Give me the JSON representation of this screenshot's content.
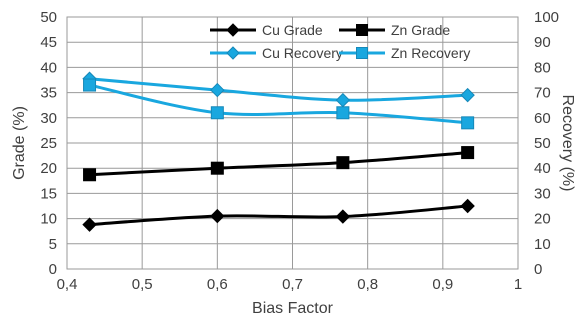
{
  "chart_data": {
    "type": "line",
    "title": "",
    "xlabel": "Bias Factor",
    "ylabel_left": "Grade (%)",
    "ylabel_right": "Recovery (%)",
    "xlim": [
      0.4,
      1.0
    ],
    "ylim_left": [
      0,
      50
    ],
    "ylim_right": [
      0,
      100
    ],
    "x_ticks": [
      "0,4",
      "0,5",
      "0,6",
      "0,7",
      "0,8",
      "0,9",
      "1"
    ],
    "y_left_ticks": [
      "0",
      "5",
      "10",
      "15",
      "20",
      "25",
      "30",
      "35",
      "40",
      "45",
      "50"
    ],
    "y_right_ticks": [
      "0",
      "10",
      "20",
      "30",
      "40",
      "50",
      "60",
      "70",
      "80",
      "90",
      "100"
    ],
    "grid": true,
    "legend_position": "top-right",
    "x": [
      0.43,
      0.6,
      0.767,
      0.933
    ],
    "series": [
      {
        "name": "Cu Grade",
        "axis": "left",
        "color": "#000000",
        "marker": "diamond",
        "values": [
          8.8,
          10.5,
          10.4,
          12.5
        ]
      },
      {
        "name": "Zn Grade",
        "axis": "left",
        "color": "#000000",
        "marker": "square",
        "values": [
          18.7,
          20.0,
          21.1,
          23.1
        ]
      },
      {
        "name": "Cu Recovery",
        "axis": "right",
        "color": "#19a7df",
        "marker": "diamond",
        "values": [
          75.5,
          71.0,
          67.0,
          69.0
        ]
      },
      {
        "name": "Zn Recovery",
        "axis": "right",
        "color": "#19a7df",
        "marker": "square",
        "values": [
          73.0,
          62.0,
          62.0,
          58.0
        ]
      }
    ]
  }
}
